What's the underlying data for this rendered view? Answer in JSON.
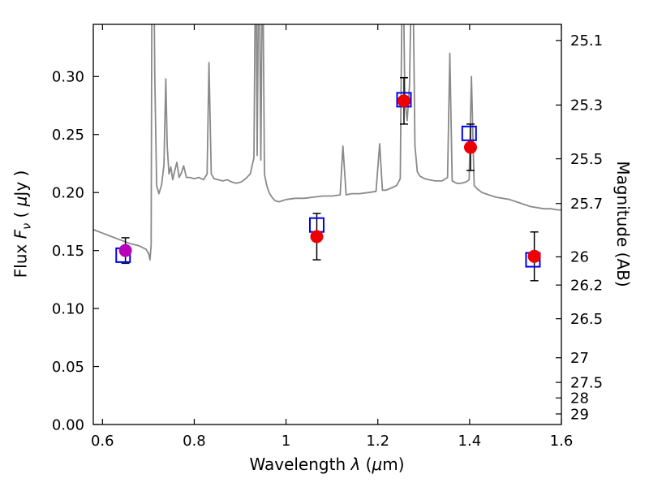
{
  "figure": {
    "background": "#ffffff",
    "axes": {
      "xlabel": {
        "word": "Wavelength ",
        "lambda": "λ",
        "open": " (",
        "mu": "μ",
        "close": "m)"
      },
      "ylabel": {
        "flux": "Flux ",
        "F": "F",
        "nu": "ν",
        "open": " ( ",
        "mu": "μ",
        "close": "Jy )"
      },
      "y2label": "Magnitude (AB)"
    }
  },
  "chart_data": {
    "type": "line",
    "title": "",
    "xlabel": "Wavelength λ (μm)",
    "ylabel": "Flux Fν ( μJy )",
    "y2label": "Magnitude (AB)",
    "xlim": [
      0.58,
      1.6
    ],
    "ylim": [
      0,
      0.345
    ],
    "grid": false,
    "legend": "none",
    "x_ticks": [
      0.6,
      0.8,
      1.0,
      1.2,
      1.4,
      1.6
    ],
    "x_tick_labels": [
      "0.6",
      "0.8",
      "1",
      "1.2",
      "1.4",
      "1.6"
    ],
    "y_ticks": [
      0.0,
      0.05,
      0.1,
      0.15,
      0.2,
      0.25,
      0.3
    ],
    "y_tick_labels": [
      "0.00",
      "0.05",
      "0.10",
      "0.15",
      "0.20",
      "0.25",
      "0.30"
    ],
    "right_ticks": [
      25.1,
      25.3,
      25.5,
      25.7,
      26,
      26.2,
      26.5,
      27,
      27.5,
      28,
      29
    ],
    "right_tick_labels": [
      "25.1",
      "25.3",
      "25.5",
      "25.7",
      "26",
      "26.2",
      "26.5",
      "27",
      "27.5",
      "28",
      "29"
    ],
    "ab_zeropoint_ujy": 23.9,
    "spectrum": {
      "name": "model-spectrum",
      "color": "#8a8a8a",
      "width": 1.8,
      "x": [
        0.58,
        0.6,
        0.62,
        0.64,
        0.66,
        0.68,
        0.695,
        0.701,
        0.7035,
        0.706,
        0.708,
        0.711,
        0.714,
        0.718,
        0.723,
        0.729,
        0.734,
        0.738,
        0.741,
        0.745,
        0.749,
        0.753,
        0.757,
        0.762,
        0.767,
        0.772,
        0.777,
        0.783,
        0.79,
        0.8,
        0.81,
        0.82,
        0.828,
        0.832,
        0.837,
        0.843,
        0.852,
        0.862,
        0.872,
        0.882,
        0.892,
        0.902,
        0.912,
        0.922,
        0.93,
        0.934,
        0.937,
        0.941,
        0.945,
        0.949,
        0.953,
        0.958,
        0.963,
        0.969,
        0.976,
        0.985,
        1.0,
        1.02,
        1.04,
        1.06,
        1.08,
        1.1,
        1.118,
        1.124,
        1.131,
        1.142,
        1.16,
        1.18,
        1.196,
        1.204,
        1.21,
        1.218,
        1.23,
        1.241,
        1.249,
        1.254,
        1.259,
        1.264,
        1.269,
        1.275,
        1.281,
        1.286,
        1.292,
        1.302,
        1.312,
        1.325,
        1.34,
        1.352,
        1.357,
        1.362,
        1.372,
        1.382,
        1.392,
        1.399,
        1.404,
        1.41,
        1.417,
        1.427,
        1.442,
        1.457,
        1.472,
        1.487,
        1.502,
        1.517,
        1.532,
        1.547,
        1.562,
        1.577,
        1.592,
        1.6
      ],
      "y": [
        0.168,
        0.165,
        0.162,
        0.159,
        0.156,
        0.154,
        0.151,
        0.147,
        0.142,
        0.155,
        0.42,
        0.44,
        0.3,
        0.206,
        0.199,
        0.207,
        0.224,
        0.298,
        0.24,
        0.216,
        0.222,
        0.211,
        0.218,
        0.226,
        0.213,
        0.217,
        0.223,
        0.213,
        0.213,
        0.212,
        0.213,
        0.211,
        0.216,
        0.312,
        0.216,
        0.212,
        0.211,
        0.21,
        0.211,
        0.209,
        0.208,
        0.209,
        0.212,
        0.216,
        0.23,
        0.43,
        0.232,
        0.435,
        0.228,
        0.42,
        0.216,
        0.206,
        0.2,
        0.196,
        0.193,
        0.192,
        0.194,
        0.195,
        0.195,
        0.196,
        0.197,
        0.197,
        0.198,
        0.24,
        0.198,
        0.199,
        0.199,
        0.2,
        0.201,
        0.242,
        0.202,
        0.202,
        0.204,
        0.206,
        0.212,
        0.43,
        0.28,
        0.262,
        0.292,
        0.435,
        0.24,
        0.218,
        0.214,
        0.212,
        0.211,
        0.21,
        0.21,
        0.213,
        0.32,
        0.21,
        0.208,
        0.208,
        0.209,
        0.211,
        0.3,
        0.206,
        0.203,
        0.2,
        0.198,
        0.196,
        0.195,
        0.194,
        0.192,
        0.19,
        0.188,
        0.187,
        0.186,
        0.186,
        0.185,
        0.185
      ]
    },
    "observed": {
      "name": "observed-photometry",
      "errorbar_color": "#000000",
      "points": [
        {
          "x": 0.65,
          "y": 0.15,
          "err": 0.011,
          "color": "#bb00bb"
        },
        {
          "x": 1.067,
          "y": 0.162,
          "err": 0.02,
          "color": "#ee0000"
        },
        {
          "x": 1.257,
          "y": 0.279,
          "err": 0.02,
          "color": "#ee0000"
        },
        {
          "x": 1.402,
          "y": 0.239,
          "err": 0.02,
          "color": "#ee0000"
        },
        {
          "x": 1.541,
          "y": 0.145,
          "err": 0.021,
          "color": "#ee0000"
        }
      ]
    },
    "model_phot": {
      "name": "model-photometry",
      "color": "#0000ee",
      "points": [
        {
          "x": 0.645,
          "y": 0.146
        },
        {
          "x": 1.067,
          "y": 0.172
        },
        {
          "x": 1.257,
          "y": 0.28
        },
        {
          "x": 1.399,
          "y": 0.251
        },
        {
          "x": 1.538,
          "y": 0.142
        }
      ]
    }
  }
}
